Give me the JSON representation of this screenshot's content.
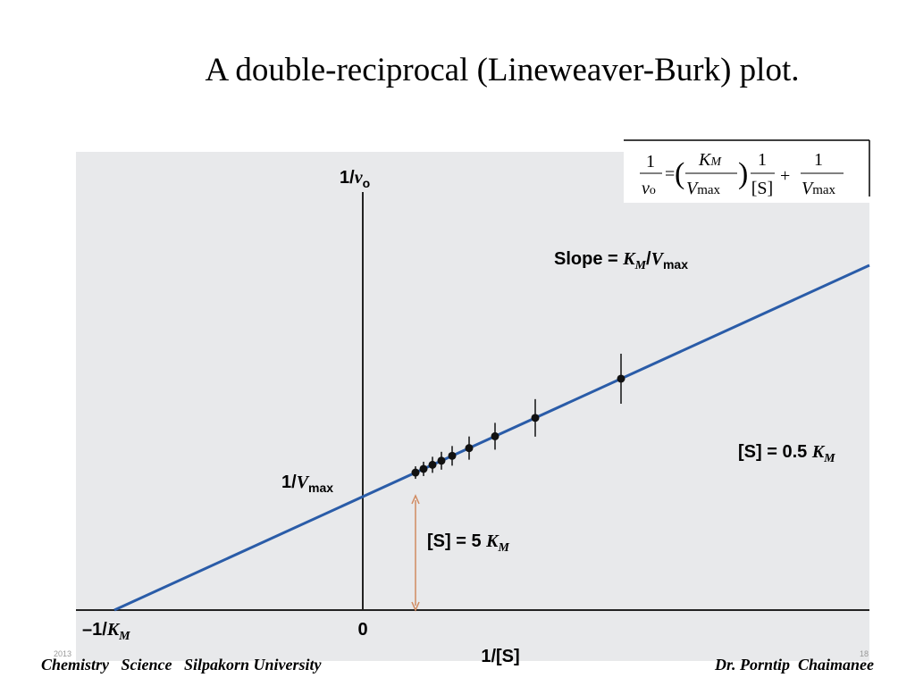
{
  "title": "A double-reciprocal (Lineweaver-Burk) plot.",
  "equation": {
    "lhs": [
      "1",
      "v",
      "o"
    ],
    "eq": "=",
    "open": "(",
    "km": [
      "K",
      "M"
    ],
    "vmax": [
      "V",
      "max"
    ],
    "close": ")",
    "inv_s": [
      "1",
      "[S]"
    ],
    "plus": "+",
    "last": [
      "1",
      "V",
      "max"
    ]
  },
  "plot": {
    "y_axis_label": [
      "1/",
      "v",
      "o"
    ],
    "slope": [
      "Slope = ",
      "K",
      "M",
      "/",
      "V",
      "max"
    ],
    "low_s": [
      "[S] = 0.5 ",
      "K",
      "M"
    ],
    "high_s": [
      "[S] = 5 ",
      "K",
      "M"
    ],
    "intercept_y": [
      "1/",
      "V",
      "max"
    ],
    "intercept_x": [
      "–1/",
      "K",
      "M"
    ],
    "origin": "0",
    "x_axis_label": "1/[S]"
  },
  "footer": {
    "left": "Chemistry   Science   Silpakorn University",
    "right": "Dr. Porntip  Chaimanee",
    "year": "2013",
    "page": "18"
  }
}
